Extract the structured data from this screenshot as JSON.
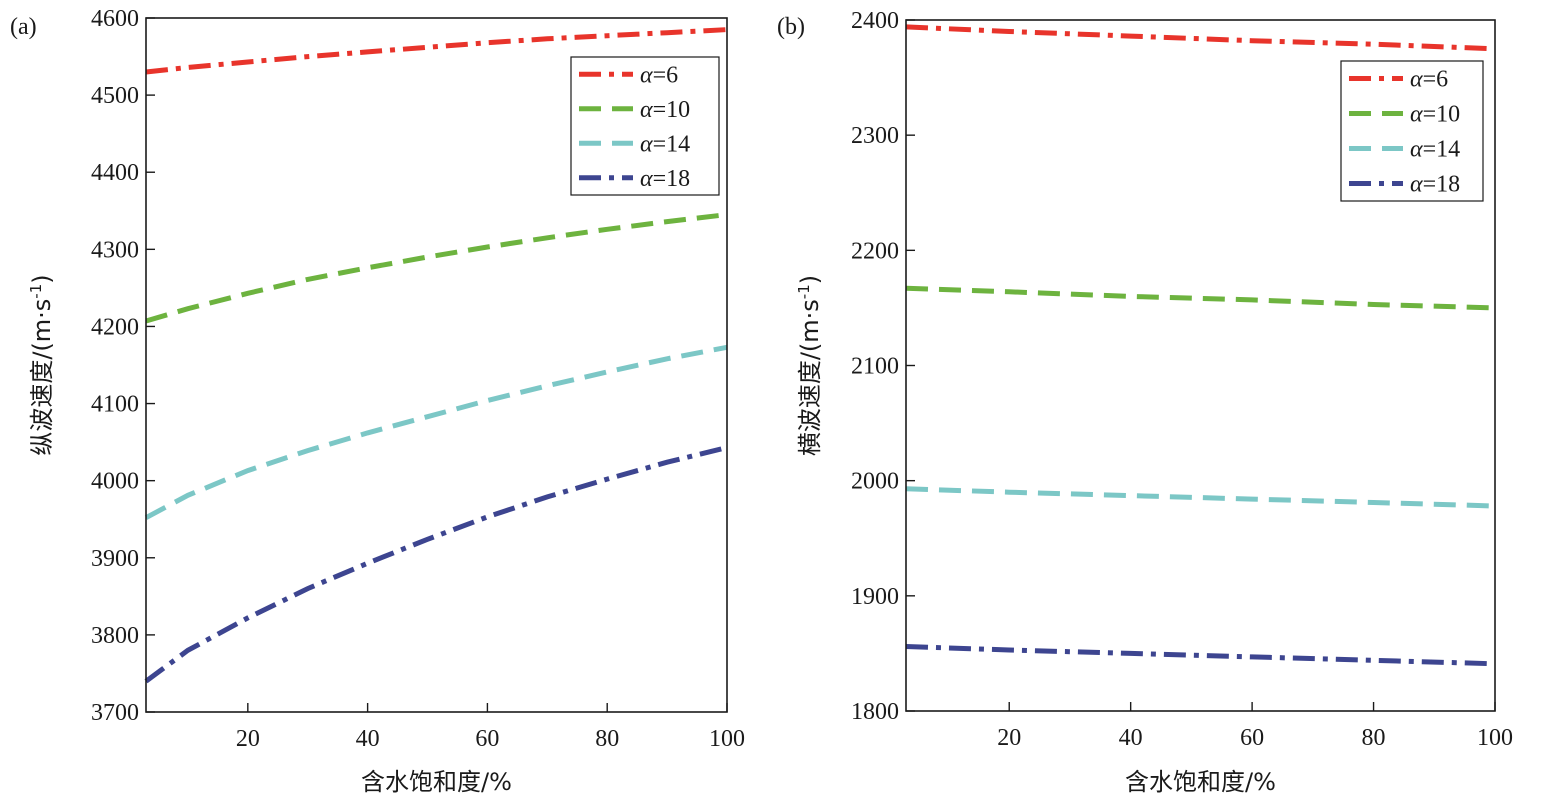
{
  "chart_data": [
    {
      "type": "line",
      "panel_label": "(a)",
      "title": "",
      "xlabel": "含水饱和度/%",
      "ylabel": "纵波速度/(m·s",
      "ylabel_sup": "-1",
      "ylabel_close": ")",
      "xlim": [
        3,
        100
      ],
      "ylim": [
        3700,
        4600
      ],
      "xticks": [
        20,
        40,
        60,
        80,
        100
      ],
      "yticks": [
        3700,
        3800,
        3900,
        4000,
        4100,
        4200,
        4300,
        4400,
        4500,
        4600
      ],
      "legend_position": "top-right",
      "series": [
        {
          "name": "α=6",
          "symbol": "α",
          "value_text": "=6",
          "color": "#e8342b",
          "style": "dash-dot",
          "x": [
            3,
            10,
            20,
            30,
            40,
            50,
            60,
            70,
            80,
            90,
            100
          ],
          "y": [
            4530,
            4536,
            4543,
            4550,
            4556,
            4562,
            4568,
            4573,
            4577,
            4581,
            4585
          ]
        },
        {
          "name": "α=10",
          "symbol": "α",
          "value_text": "=10",
          "color": "#6db33f",
          "style": "dash",
          "x": [
            3,
            10,
            20,
            30,
            40,
            50,
            60,
            70,
            80,
            90,
            100
          ],
          "y": [
            4207,
            4223,
            4243,
            4261,
            4276,
            4290,
            4303,
            4315,
            4326,
            4336,
            4345
          ]
        },
        {
          "name": "α=14",
          "symbol": "α",
          "value_text": "=14",
          "color": "#7cc7c6",
          "style": "dash",
          "x": [
            3,
            10,
            20,
            30,
            40,
            50,
            60,
            70,
            80,
            90,
            100
          ],
          "y": [
            3952,
            3981,
            4013,
            4039,
            4062,
            4083,
            4104,
            4123,
            4141,
            4158,
            4173
          ]
        },
        {
          "name": "α=18",
          "symbol": "α",
          "value_text": "=18",
          "color": "#3d4590",
          "style": "dash-dot",
          "x": [
            3,
            10,
            20,
            30,
            40,
            50,
            60,
            70,
            80,
            90,
            100
          ],
          "y": [
            3740,
            3780,
            3822,
            3860,
            3893,
            3924,
            3953,
            3979,
            4002,
            4024,
            4043
          ]
        }
      ]
    },
    {
      "type": "line",
      "panel_label": "(b)",
      "title": "",
      "xlabel": "含水饱和度/%",
      "ylabel": "横波速度/(m·s",
      "ylabel_sup": "-1",
      "ylabel_close": ")",
      "xlim": [
        3,
        100
      ],
      "ylim": [
        1800,
        2400
      ],
      "xticks": [
        20,
        40,
        60,
        80,
        100
      ],
      "yticks": [
        1800,
        1900,
        2000,
        2100,
        2200,
        2300,
        2400
      ],
      "legend_position": "top-right",
      "series": [
        {
          "name": "α=6",
          "symbol": "α",
          "value_text": "=6",
          "color": "#e8342b",
          "style": "dash-dot",
          "x": [
            3,
            20,
            40,
            60,
            80,
            100
          ],
          "y": [
            2394,
            2390,
            2386,
            2382,
            2379,
            2375
          ]
        },
        {
          "name": "α=10",
          "symbol": "α",
          "value_text": "=10",
          "color": "#6db33f",
          "style": "dash",
          "x": [
            3,
            20,
            40,
            60,
            80,
            100
          ],
          "y": [
            2167,
            2164,
            2160,
            2157,
            2153,
            2150
          ]
        },
        {
          "name": "α=14",
          "symbol": "α",
          "value_text": "=14",
          "color": "#7cc7c6",
          "style": "dash",
          "x": [
            3,
            20,
            40,
            60,
            80,
            100
          ],
          "y": [
            1993,
            1990,
            1987,
            1984,
            1981,
            1978
          ]
        },
        {
          "name": "α=18",
          "symbol": "α",
          "value_text": "=18",
          "color": "#3d4590",
          "style": "dash-dot",
          "x": [
            3,
            20,
            40,
            60,
            80,
            100
          ],
          "y": [
            1856,
            1853,
            1850,
            1847,
            1844,
            1841
          ]
        }
      ]
    }
  ]
}
